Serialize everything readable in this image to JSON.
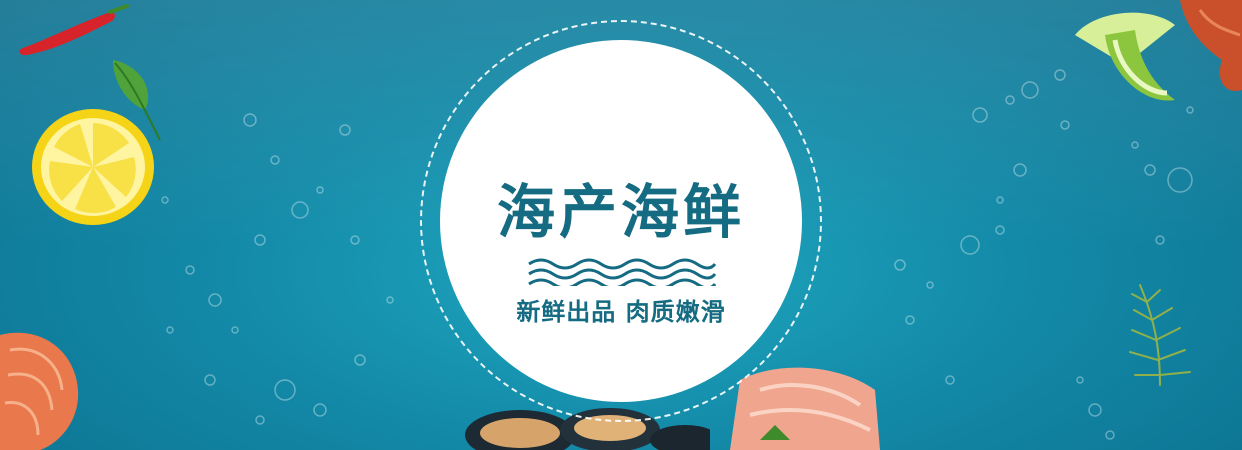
{
  "banner": {
    "title": "海产海鲜",
    "subtitle": "新鲜出品 肉质嫩滑",
    "colors": {
      "background": "#138aa8",
      "disc": "#ffffff",
      "text": "#146b82"
    },
    "decorations": [
      "chili-pepper",
      "lemon-slice",
      "leaf",
      "shrimp",
      "lime-slice",
      "lobster-claw",
      "dill-sprig",
      "mussels",
      "salmon-fillet",
      "water-bubbles"
    ]
  }
}
